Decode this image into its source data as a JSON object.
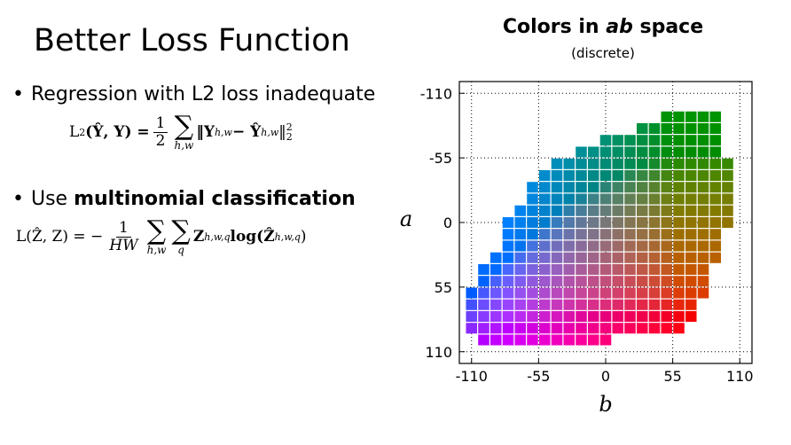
{
  "slide": {
    "title": "Better Loss Function",
    "bullet1": "Regression with L2 loss inadequate",
    "bullet2_prefix": "Use ",
    "bullet2_bold": "multinomial classification",
    "eq1": {
      "lhs": "L",
      "lhs_sub": "2",
      "args": "(Ŷ, Y) =",
      "frac_num": "1",
      "frac_den": "2",
      "sum_sub": "h,w",
      "body": "‖Y",
      "body_sub": "h,w",
      "minus": " − Ŷ",
      "minus_sub": "h,w",
      "close": "‖",
      "close_sup": "2",
      "close_sub": "2"
    },
    "eq2": {
      "lhs": "L(Ẑ, Z) = −",
      "frac_num": "1",
      "frac_den": "HW",
      "sum1_sub": "h,w",
      "sum2_sub": "q",
      "z": "Z",
      "z_sub": "h,w,q",
      "log": " log(Ẑ",
      "log_sub": "h,w,q",
      "close": ")"
    }
  },
  "chart_data": {
    "type": "heatmap",
    "title_prefix": "Colors in ",
    "title_italic": "ab",
    "title_suffix": " space",
    "subtitle": "(discrete)",
    "xlabel": "b",
    "ylabel": "a",
    "xlim": [
      -120,
      120
    ],
    "ylim": [
      -120,
      120
    ],
    "y_inverted": true,
    "xticks": [
      -110,
      -55,
      0,
      55,
      110
    ],
    "xtick_labels": [
      "-110",
      "-55",
      "0",
      "55",
      "110"
    ],
    "yticks": [
      -110,
      -55,
      0,
      55,
      110
    ],
    "ytick_labels": [
      "-110",
      "-55",
      "0",
      "55",
      "110"
    ],
    "grid": true,
    "bin_size": 10,
    "rows": [
      {
        "a": -90,
        "b_min": 50,
        "b_max": 90
      },
      {
        "a": -80,
        "b_min": 30,
        "b_max": 90
      },
      {
        "a": -70,
        "b_min": 0,
        "b_max": 90
      },
      {
        "a": -60,
        "b_min": -20,
        "b_max": 90
      },
      {
        "a": -50,
        "b_min": -40,
        "b_max": 100
      },
      {
        "a": -40,
        "b_min": -50,
        "b_max": 100
      },
      {
        "a": -30,
        "b_min": -60,
        "b_max": 100
      },
      {
        "a": -20,
        "b_min": -60,
        "b_max": 100
      },
      {
        "a": -10,
        "b_min": -70,
        "b_max": 100
      },
      {
        "a": 0,
        "b_min": -80,
        "b_max": 100
      },
      {
        "a": 10,
        "b_min": -80,
        "b_max": 90
      },
      {
        "a": 20,
        "b_min": -80,
        "b_max": 90
      },
      {
        "a": 30,
        "b_min": -90,
        "b_max": 90
      },
      {
        "a": 40,
        "b_min": -100,
        "b_max": 80
      },
      {
        "a": 50,
        "b_min": -100,
        "b_max": 80
      },
      {
        "a": 60,
        "b_min": -110,
        "b_max": 80
      },
      {
        "a": 70,
        "b_min": -110,
        "b_max": 70
      },
      {
        "a": 80,
        "b_min": -110,
        "b_max": 70
      },
      {
        "a": 90,
        "b_min": -110,
        "b_max": 60
      },
      {
        "a": 100,
        "b_min": -100,
        "b_max": 0
      }
    ]
  }
}
